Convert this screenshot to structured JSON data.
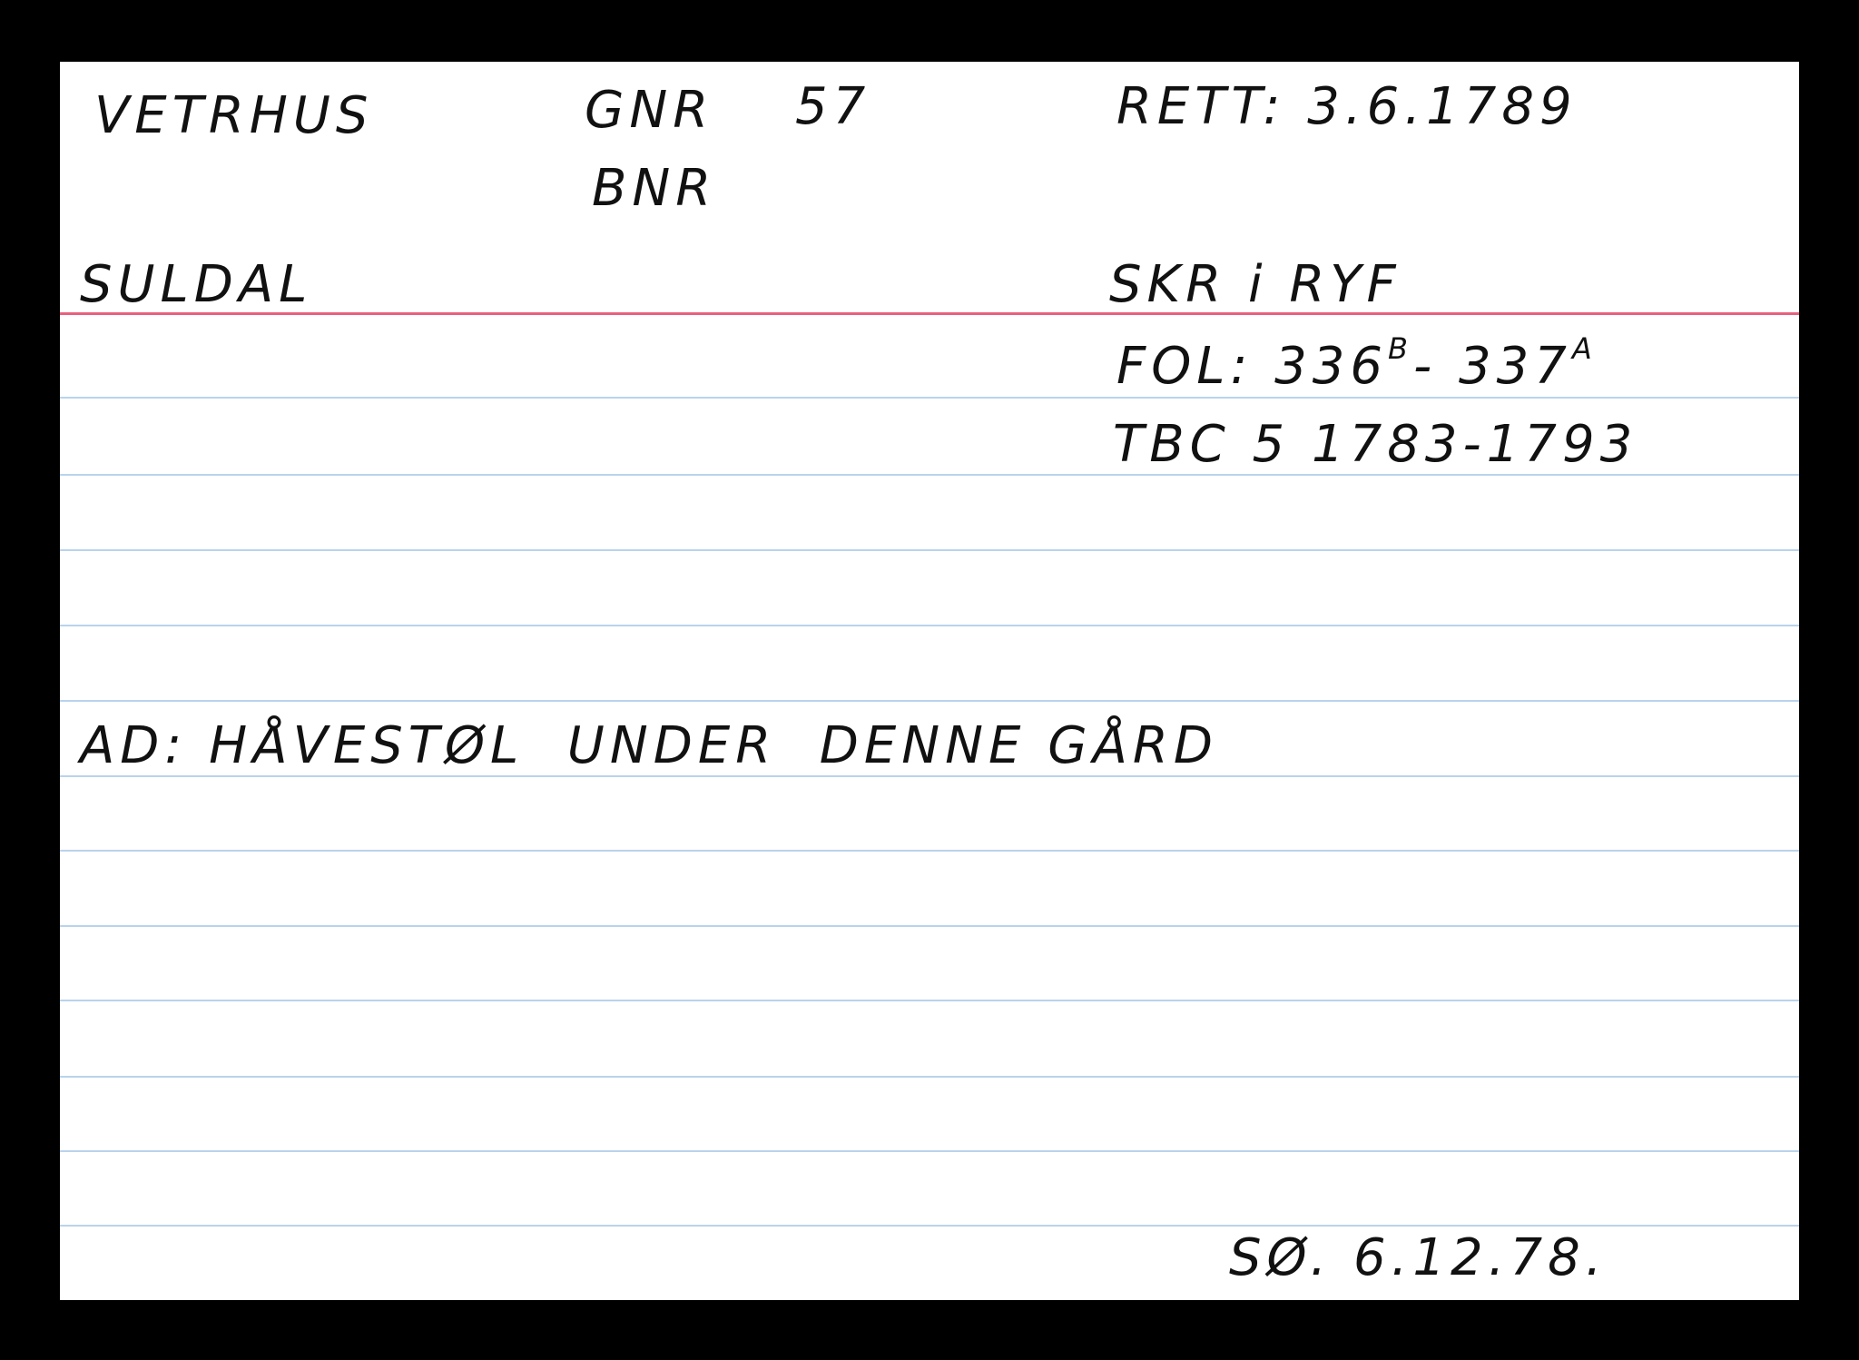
{
  "card": {
    "farm_name": "VETRHUS",
    "gnr_label": "GNR",
    "gnr_value": "57",
    "bnr_label": "BNR",
    "rett": "RETT: 3.6.1789",
    "municipality": "SULDAL",
    "court": "SKR i RYF",
    "folio_prefix": "FOL: 336",
    "folio_sup1": "B",
    "folio_mid": "- 337",
    "folio_sup2": "A",
    "protocol": "TBC 5 1783-1793",
    "note": "AD: HÅVESTØL  UNDER  DENNE GÅRD",
    "signature": "SØ. 6.12.78."
  },
  "colors": {
    "margin_line": "#e8607e",
    "ruled_line": "#b9d3ec",
    "ink": "#111111"
  }
}
